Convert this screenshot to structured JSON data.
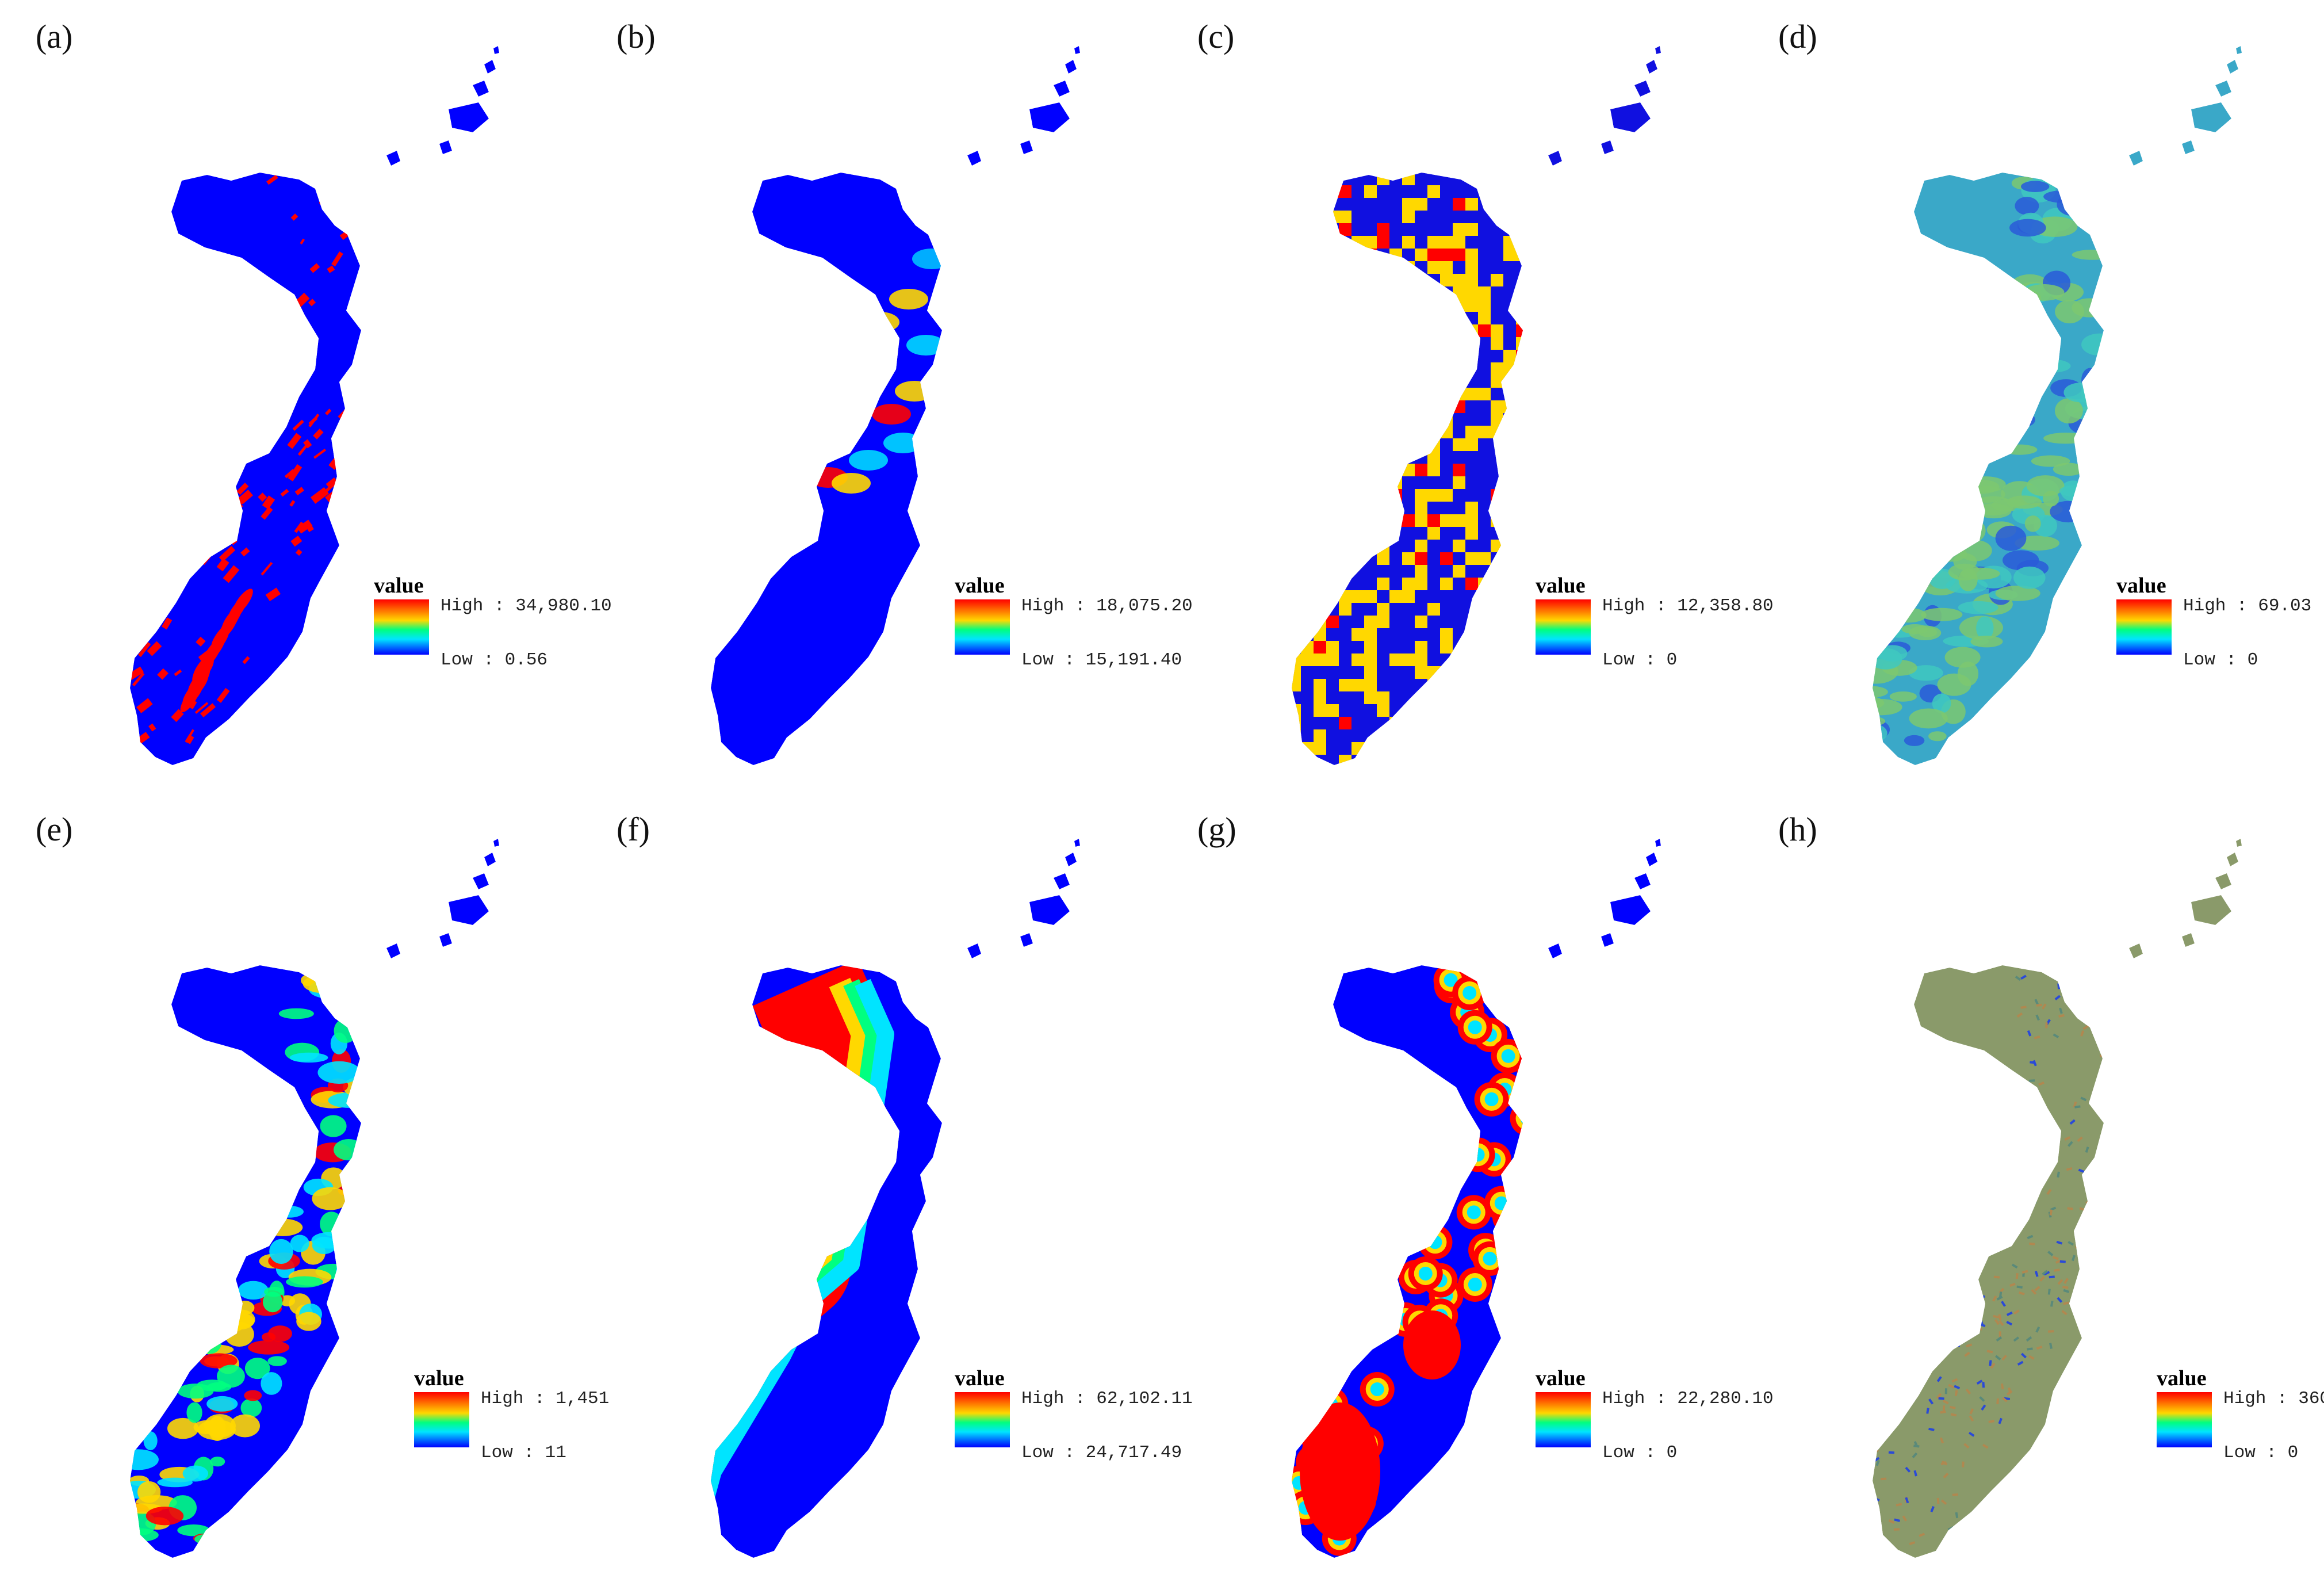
{
  "colors": {
    "ramp_high": "#ff0000",
    "ramp_upper": "#ffd800",
    "ramp_mid": "#00e4ff",
    "ramp_low": "#0000ff",
    "water_blue": "#0000ff"
  },
  "legend_title": "value",
  "panels": [
    {
      "id": "a",
      "label": "(a)",
      "style": "red-veins",
      "high": "High : 34,980.10",
      "low": "Low : 0.56"
    },
    {
      "id": "b",
      "label": "(b)",
      "style": "north-edge",
      "high": "High : 18,075.20",
      "low": "Low : 15,191.40"
    },
    {
      "id": "c",
      "label": "(c)",
      "style": "checker-yellow",
      "high": "High : 12,358.80",
      "low": "Low : 0"
    },
    {
      "id": "d",
      "label": "(d)",
      "style": "cyan-green",
      "high": "High : 69.03",
      "low": "Low : 0"
    },
    {
      "id": "e",
      "label": "(e)",
      "style": "elevation",
      "high": "High : 1,451",
      "low": "Low : 11"
    },
    {
      "id": "f",
      "label": "(f)",
      "style": "distance-band",
      "high": "High : 62,102.11",
      "low": "Low : 24,717.49"
    },
    {
      "id": "g",
      "label": "(g)",
      "style": "point-distance",
      "high": "High : 22,280.10",
      "low": "Low : 0"
    },
    {
      "id": "h",
      "label": "(h)",
      "style": "aspect-texture",
      "high": "High : 360",
      "low": "Low : 0"
    }
  ]
}
